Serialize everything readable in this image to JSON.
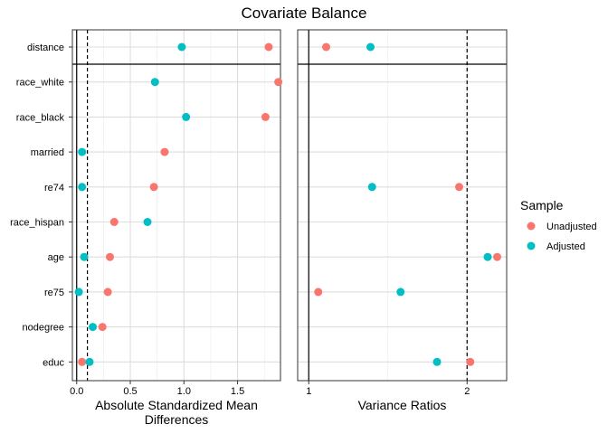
{
  "chart_data": {
    "type": "dot",
    "title": "Covariate Balance",
    "categories": [
      "distance",
      "race_white",
      "race_black",
      "married",
      "re74",
      "race_hispan",
      "age",
      "re75",
      "nodegree",
      "educ"
    ],
    "panels": [
      {
        "name": "smd",
        "xlabel": [
          "Absolute Standardized Mean",
          "Differences"
        ],
        "xlim": [
          -0.04,
          1.9
        ],
        "xticks": [
          0,
          0.5,
          1,
          1.5
        ],
        "xtick_labels": [
          "0.0",
          "0.5",
          "1.0",
          "1.5"
        ],
        "threshold": 0.1,
        "reference": 0,
        "series": [
          {
            "name": "Unadjusted",
            "values": [
              1.79,
              1.88,
              1.76,
              0.82,
              0.72,
              0.35,
              0.31,
              0.29,
              0.24,
              0.05
            ]
          },
          {
            "name": "Adjusted",
            "values": [
              0.98,
              0.73,
              1.02,
              0.05,
              0.05,
              0.66,
              0.07,
              0.02,
              0.15,
              0.12
            ]
          }
        ]
      },
      {
        "name": "vr",
        "xlabel": [
          "Variance Ratios"
        ],
        "xlim": [
          0.93,
          2.25
        ],
        "xticks": [
          1,
          2
        ],
        "xtick_labels": [
          "1",
          "2"
        ],
        "threshold": 2,
        "reference": 1,
        "series": [
          {
            "name": "Unadjusted",
            "values": [
              1.11,
              null,
              null,
              null,
              1.95,
              null,
              2.19,
              1.06,
              null,
              2.02
            ]
          },
          {
            "name": "Adjusted",
            "values": [
              1.39,
              null,
              null,
              null,
              1.4,
              null,
              2.13,
              1.58,
              null,
              1.81
            ]
          }
        ]
      }
    ],
    "legend": {
      "title": "Sample",
      "position": "right",
      "entries": [
        {
          "name": "Unadjusted",
          "color": "#F8766D"
        },
        {
          "name": "Adjusted",
          "color": "#00BFC4"
        }
      ]
    }
  }
}
